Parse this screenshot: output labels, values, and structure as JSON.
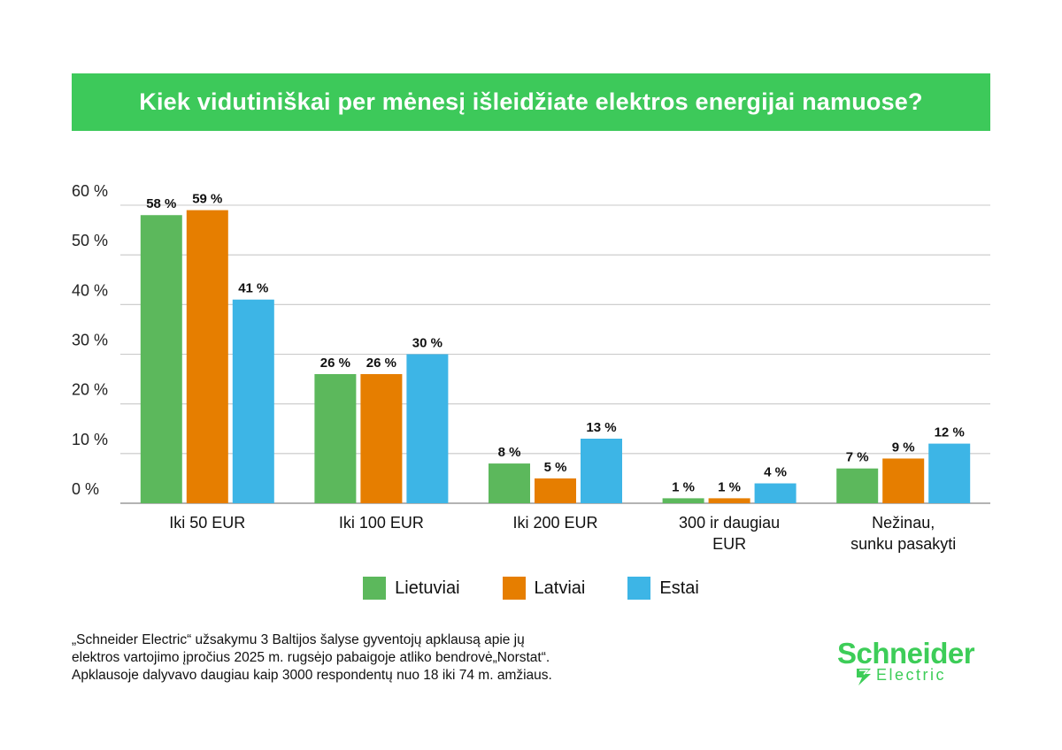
{
  "title": "Kiek vidutiniškai per mėnesį išleidžiate elektros energijai namuose?",
  "chart_data": {
    "type": "bar",
    "title": "Kiek vidutiniškai per mėnesį išleidžiate elektros energijai namuose?",
    "categories": [
      [
        "Iki 50 EUR"
      ],
      [
        "Iki 100 EUR"
      ],
      [
        "Iki 200 EUR"
      ],
      [
        "300 ir daugiau",
        "EUR"
      ],
      [
        "Nežinau,",
        "sunku pasakyti"
      ]
    ],
    "series": [
      {
        "name": "Lietuviai",
        "color": "#5cb85c",
        "values": [
          58,
          26,
          8,
          1,
          7
        ],
        "labels": [
          "58 %",
          "26 %",
          "8 %",
          "1 %",
          "7 %"
        ]
      },
      {
        "name": "Latviai",
        "color": "#e67e00",
        "values": [
          59,
          26,
          5,
          1,
          9
        ],
        "labels": [
          "59 %",
          "26 %",
          "5 %",
          "1 %",
          "9 %"
        ]
      },
      {
        "name": "Estai",
        "color": "#3db5e6",
        "values": [
          41,
          30,
          13,
          4,
          12
        ],
        "labels": [
          "41 %",
          "30 %",
          "13 %",
          "4 %",
          "12 %"
        ]
      }
    ],
    "yticks": [
      "0 %",
      "10 %",
      "20 %",
      "30 %",
      "40 %",
      "50 %",
      "60 %"
    ],
    "ylim": [
      0,
      60
    ],
    "grid": true,
    "legend_position": "bottom-center"
  },
  "legend": [
    {
      "label": "Lietuviai",
      "color": "#5cb85c"
    },
    {
      "label": "Latviai",
      "color": "#e67e00"
    },
    {
      "label": "Estai",
      "color": "#3db5e6"
    }
  ],
  "footnote": {
    "line1": "„Schneider Electric“ užsakymu 3 Baltijos šalyse gyventojų apklausą apie jų",
    "line2": "elektros vartojimo įpročius 2025 m.  rugsėjo pabaigoje atliko bendrovė„Norstat“.",
    "line3": "Apklausoje dalyvavo daugiau kaip 3000 respondentų nuo 18 iki 74 m. amžiaus."
  },
  "logo": {
    "name": "Schneider",
    "sub": "Electric",
    "color": "#3dcd58"
  }
}
